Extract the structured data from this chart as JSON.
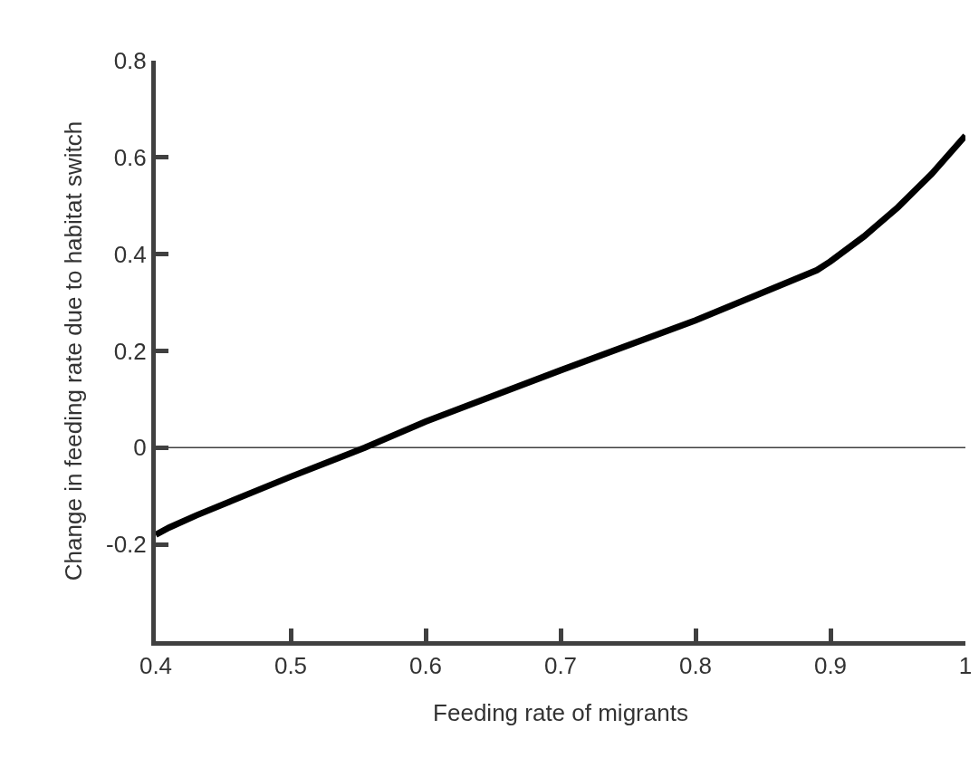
{
  "chart_data": {
    "type": "line",
    "xlabel": "Feeding rate of migrants",
    "ylabel": "Change in feeding rate due to habitat switch",
    "x": [
      0.4,
      0.41,
      0.43,
      0.5,
      0.555,
      0.6,
      0.7,
      0.8,
      0.89,
      0.9,
      0.925,
      0.95,
      0.975,
      1.0
    ],
    "series": [
      {
        "color": "#000000",
        "values": [
          -0.18,
          -0.165,
          -0.14,
          -0.06,
          0.0,
          0.054,
          0.16,
          0.263,
          0.367,
          0.385,
          0.437,
          0.497,
          0.566,
          0.645
        ]
      }
    ],
    "xlim": [
      0.4,
      1.0
    ],
    "xticks": [
      0.4,
      0.5,
      0.6,
      0.7,
      0.8,
      0.9,
      1
    ],
    "ylim": [
      -0.4,
      0.8
    ],
    "yticks": [
      {
        "value": -0.4,
        "label": null
      },
      -0.2,
      0,
      0.2,
      0.4,
      0.6,
      0.8
    ],
    "ref_lines": [
      {
        "axis": "y",
        "value": 0,
        "color": "#404040"
      }
    ],
    "grid": false,
    "marker": "none",
    "line_style": "solid"
  }
}
